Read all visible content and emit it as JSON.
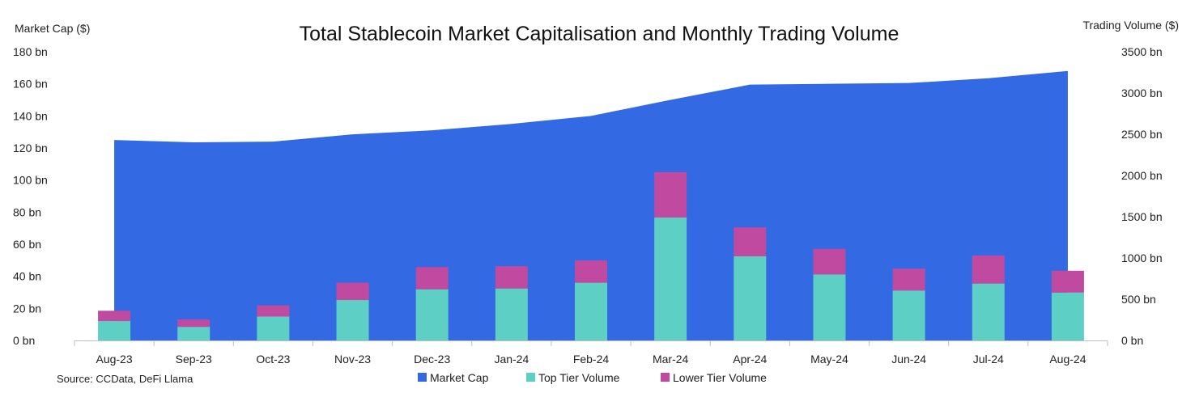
{
  "chart_data": {
    "type": "bar",
    "title": "Total Stablecoin Market Capitalisation and Monthly Trading Volume",
    "ylabel_left": "Market Cap ($)",
    "ylabel_right": "Trading Volume ($)",
    "source": "Source: CCData, DeFi Llama",
    "categories": [
      "Aug-23",
      "Sep-23",
      "Oct-23",
      "Nov-23",
      "Dec-23",
      "Jan-24",
      "Feb-24",
      "Mar-24",
      "Apr-24",
      "May-24",
      "Jun-24",
      "Jul-24",
      "Aug-24"
    ],
    "yticks_left": [
      "0 bn",
      "20 bn",
      "40 bn",
      "60 bn",
      "80 bn",
      "100 bn",
      "120 bn",
      "140 bn",
      "160 bn",
      "180 bn"
    ],
    "yticks_right": [
      "0 bn",
      "500 bn",
      "1000 bn",
      "1500 bn",
      "2000 bn",
      "2500 bn",
      "3000 bn",
      "3500 bn"
    ],
    "ylim_left": [
      0,
      180
    ],
    "ylim_right": [
      0,
      3500
    ],
    "legend_position": "bottom",
    "series": [
      {
        "name": "Market Cap",
        "type": "area",
        "axis": "left",
        "color": "#3369e3",
        "values": [
          125,
          123.5,
          124,
          128.5,
          131,
          135,
          140,
          150,
          159.5,
          160,
          160.5,
          163.5,
          168
        ]
      },
      {
        "name": "Top Tier Volume",
        "type": "bar",
        "axis": "right",
        "color": "#5ecfc4",
        "values": [
          235,
          165,
          290,
          490,
          620,
          630,
          700,
          1490,
          1020,
          800,
          605,
          690,
          580
        ]
      },
      {
        "name": "Lower Tier Volume",
        "type": "bar",
        "axis": "right",
        "color": "#c14aa1",
        "values": [
          125,
          90,
          135,
          210,
          270,
          270,
          270,
          550,
          350,
          310,
          265,
          340,
          265
        ]
      }
    ]
  }
}
